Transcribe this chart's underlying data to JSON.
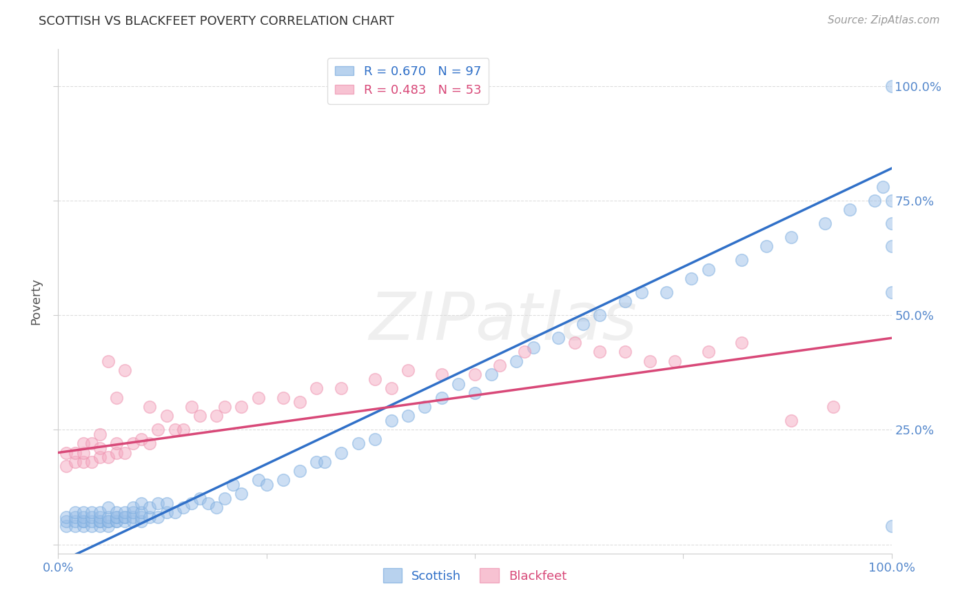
{
  "title": "SCOTTISH VS BLACKFEET POVERTY CORRELATION CHART",
  "source": "Source: ZipAtlas.com",
  "ylabel": "Poverty",
  "xlabel": "",
  "xlim": [
    0.0,
    1.0
  ],
  "ylim": [
    -0.02,
    1.08
  ],
  "background_color": "#ffffff",
  "grid_color": "#dddddd",
  "scottish_color": "#9bbfe8",
  "blackfeet_color": "#f4a8c0",
  "scottish_edge_color": "#7aacdf",
  "blackfeet_edge_color": "#ee90ae",
  "scottish_line_color": "#3070c8",
  "blackfeet_line_color": "#d84878",
  "R_scottish": 0.67,
  "N_scottish": 97,
  "R_blackfeet": 0.483,
  "N_blackfeet": 53,
  "scottish_line_x0": 0.0,
  "scottish_line_y0": -0.04,
  "scottish_line_x1": 1.0,
  "scottish_line_y1": 0.82,
  "blackfeet_line_x0": 0.0,
  "blackfeet_line_y0": 0.2,
  "blackfeet_line_x1": 1.0,
  "blackfeet_line_y1": 0.45,
  "scottish_x": [
    0.01,
    0.01,
    0.01,
    0.02,
    0.02,
    0.02,
    0.02,
    0.03,
    0.03,
    0.03,
    0.03,
    0.03,
    0.04,
    0.04,
    0.04,
    0.04,
    0.05,
    0.05,
    0.05,
    0.05,
    0.05,
    0.06,
    0.06,
    0.06,
    0.06,
    0.06,
    0.07,
    0.07,
    0.07,
    0.07,
    0.07,
    0.08,
    0.08,
    0.08,
    0.08,
    0.09,
    0.09,
    0.09,
    0.09,
    0.1,
    0.1,
    0.1,
    0.1,
    0.11,
    0.11,
    0.12,
    0.12,
    0.13,
    0.13,
    0.14,
    0.15,
    0.16,
    0.17,
    0.18,
    0.19,
    0.2,
    0.21,
    0.22,
    0.24,
    0.25,
    0.27,
    0.29,
    0.31,
    0.32,
    0.34,
    0.36,
    0.38,
    0.4,
    0.42,
    0.44,
    0.46,
    0.48,
    0.5,
    0.52,
    0.55,
    0.57,
    0.6,
    0.63,
    0.65,
    0.68,
    0.7,
    0.73,
    0.76,
    0.78,
    0.82,
    0.85,
    0.88,
    0.92,
    0.95,
    0.98,
    0.99,
    1.0,
    1.0,
    1.0,
    1.0,
    1.0,
    1.0
  ],
  "scottish_y": [
    0.04,
    0.05,
    0.06,
    0.04,
    0.05,
    0.06,
    0.07,
    0.04,
    0.05,
    0.05,
    0.06,
    0.07,
    0.04,
    0.05,
    0.06,
    0.07,
    0.04,
    0.05,
    0.05,
    0.06,
    0.07,
    0.04,
    0.05,
    0.05,
    0.06,
    0.08,
    0.05,
    0.05,
    0.06,
    0.06,
    0.07,
    0.05,
    0.06,
    0.06,
    0.07,
    0.05,
    0.06,
    0.07,
    0.08,
    0.05,
    0.06,
    0.07,
    0.09,
    0.06,
    0.08,
    0.06,
    0.09,
    0.07,
    0.09,
    0.07,
    0.08,
    0.09,
    0.1,
    0.09,
    0.08,
    0.1,
    0.13,
    0.11,
    0.14,
    0.13,
    0.14,
    0.16,
    0.18,
    0.18,
    0.2,
    0.22,
    0.23,
    0.27,
    0.28,
    0.3,
    0.32,
    0.35,
    0.33,
    0.37,
    0.4,
    0.43,
    0.45,
    0.48,
    0.5,
    0.53,
    0.55,
    0.55,
    0.58,
    0.6,
    0.62,
    0.65,
    0.67,
    0.7,
    0.73,
    0.75,
    0.78,
    0.04,
    0.55,
    0.65,
    0.7,
    0.75,
    1.0
  ],
  "blackfeet_x": [
    0.01,
    0.01,
    0.02,
    0.02,
    0.03,
    0.03,
    0.03,
    0.04,
    0.04,
    0.05,
    0.05,
    0.05,
    0.06,
    0.06,
    0.07,
    0.07,
    0.07,
    0.08,
    0.08,
    0.09,
    0.1,
    0.11,
    0.11,
    0.12,
    0.13,
    0.14,
    0.15,
    0.16,
    0.17,
    0.19,
    0.2,
    0.22,
    0.24,
    0.27,
    0.29,
    0.31,
    0.34,
    0.38,
    0.4,
    0.42,
    0.46,
    0.5,
    0.53,
    0.56,
    0.62,
    0.65,
    0.68,
    0.71,
    0.74,
    0.78,
    0.82,
    0.88,
    0.93
  ],
  "blackfeet_y": [
    0.17,
    0.2,
    0.18,
    0.2,
    0.18,
    0.2,
    0.22,
    0.18,
    0.22,
    0.19,
    0.21,
    0.24,
    0.19,
    0.4,
    0.2,
    0.22,
    0.32,
    0.2,
    0.38,
    0.22,
    0.23,
    0.22,
    0.3,
    0.25,
    0.28,
    0.25,
    0.25,
    0.3,
    0.28,
    0.28,
    0.3,
    0.3,
    0.32,
    0.32,
    0.31,
    0.34,
    0.34,
    0.36,
    0.34,
    0.38,
    0.37,
    0.37,
    0.39,
    0.42,
    0.44,
    0.42,
    0.42,
    0.4,
    0.4,
    0.42,
    0.44,
    0.27,
    0.3
  ]
}
